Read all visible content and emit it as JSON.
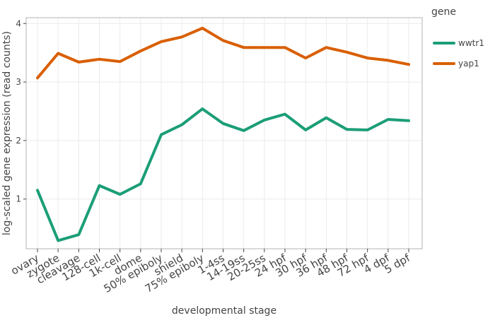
{
  "chart_data": {
    "type": "line",
    "xlabel": "developmental stage",
    "ylabel": "log-scaled gene expression (read counts)",
    "categories": [
      "ovary",
      "zygote",
      "cleavage",
      "128-cell",
      "1k-cell",
      "dome",
      "50% epiboly",
      "shield",
      "75% epiboly",
      "1-4ss",
      "14-19ss",
      "20-25ss",
      "24 hpf",
      "30 hpf",
      "36 hpf",
      "48 hpf",
      "72 hpf",
      "4 dpf",
      "5 dpf"
    ],
    "ylim": [
      0.15,
      4.1
    ],
    "yticks": [
      1,
      2,
      3,
      4
    ],
    "grid": true,
    "legend_title": "gene",
    "legend_position": "right",
    "series": [
      {
        "name": "wwtr1",
        "color": "#1b9e77",
        "values": [
          1.15,
          0.29,
          0.39,
          1.23,
          1.08,
          1.26,
          2.1,
          2.27,
          2.54,
          2.29,
          2.17,
          2.35,
          2.45,
          2.18,
          2.39,
          2.19,
          2.18,
          2.36,
          2.34
        ]
      },
      {
        "name": "yap1",
        "color": "#d95f02",
        "values": [
          3.07,
          3.49,
          3.34,
          3.39,
          3.35,
          3.53,
          3.69,
          3.77,
          3.92,
          3.71,
          3.59,
          3.59,
          3.59,
          3.41,
          3.59,
          3.51,
          3.41,
          3.37,
          3.3
        ]
      }
    ]
  }
}
